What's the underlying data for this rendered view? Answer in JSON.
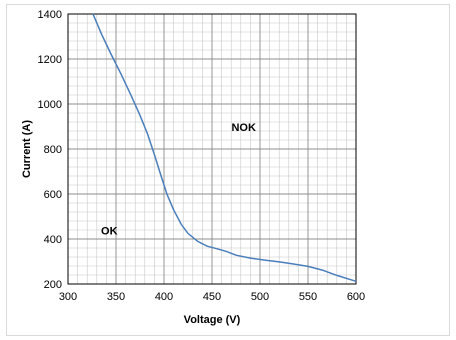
{
  "chart_data": {
    "type": "line",
    "xlabel": "Voltage (V)",
    "ylabel": "Current (A)",
    "xlim": [
      300,
      600
    ],
    "ylim": [
      200,
      1400
    ],
    "x_ticks": [
      300,
      350,
      400,
      450,
      500,
      550,
      600
    ],
    "y_ticks": [
      200,
      400,
      600,
      800,
      1000,
      1200,
      1400
    ],
    "grid": true,
    "minor_grid": true,
    "series": [
      {
        "color": "#4a7ebb",
        "points": [
          [
            326,
            1400
          ],
          [
            335,
            1310
          ],
          [
            345,
            1220
          ],
          [
            355,
            1135
          ],
          [
            365,
            1045
          ],
          [
            375,
            950
          ],
          [
            383,
            865
          ],
          [
            390,
            775
          ],
          [
            397,
            680
          ],
          [
            403,
            600
          ],
          [
            410,
            530
          ],
          [
            418,
            465
          ],
          [
            425,
            425
          ],
          [
            435,
            390
          ],
          [
            445,
            368
          ],
          [
            455,
            357
          ],
          [
            465,
            345
          ],
          [
            475,
            328
          ],
          [
            490,
            315
          ],
          [
            505,
            306
          ],
          [
            520,
            298
          ],
          [
            535,
            289
          ],
          [
            550,
            278
          ],
          [
            565,
            262
          ],
          [
            580,
            238
          ],
          [
            600,
            212
          ]
        ]
      }
    ],
    "annotations": [
      {
        "text": "NOK",
        "x": 483,
        "y": 880
      },
      {
        "text": "OK",
        "x": 343,
        "y": 420
      }
    ]
  }
}
